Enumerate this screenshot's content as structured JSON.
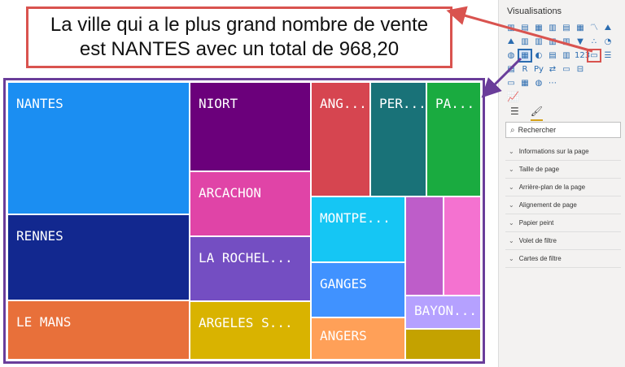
{
  "callout": {
    "line1": "La ville qui a le plus grand nombre de vente",
    "line2": "est NANTES avec un total de 968,20"
  },
  "treemap": {
    "tiles": [
      {
        "label": "NANTES",
        "color": "#1b8ef2"
      },
      {
        "label": "RENNES",
        "color": "#12288f"
      },
      {
        "label": "LE MANS",
        "color": "#e8703a"
      },
      {
        "label": "NIORT",
        "color": "#6b007b"
      },
      {
        "label": "ARCACHON",
        "color": "#e044a7"
      },
      {
        "label": "LA ROCHEL...",
        "color": "#744ec2"
      },
      {
        "label": "ARGELES S...",
        "color": "#d9b300"
      },
      {
        "label": "ANG...",
        "color": "#d64550"
      },
      {
        "label": "PER...",
        "color": "#197278"
      },
      {
        "label": "PA...",
        "color": "#1aab40"
      },
      {
        "label": "MONTPE...",
        "color": "#15c6f4"
      },
      {
        "label": "GANGES",
        "color": "#4092ff"
      },
      {
        "label": "ANGERS",
        "color": "#ffa058"
      },
      {
        "label": "",
        "color": "#be5dc9"
      },
      {
        "label": "",
        "color": "#f472d0"
      },
      {
        "label": "BAYON...",
        "color": "#b5a1ff"
      },
      {
        "label": "",
        "color": "#c4a200"
      }
    ]
  },
  "panel": {
    "title": "Visualisations",
    "search_placeholder": "Rechercher",
    "sections": [
      "Informations sur la page",
      "Taille de page",
      "Arrière-plan de la page",
      "Alignement de page",
      "Papier peint",
      "Volet de filtre",
      "Cartes de filtre"
    ],
    "viz_rows": [
      [
        "▥",
        "▤",
        "▦",
        "▥",
        "▤",
        "▦",
        "〽",
        "⛰"
      ],
      [
        "⛰",
        "▥",
        "▥",
        "▥",
        "▥",
        "▼",
        "∴",
        "◔"
      ],
      [
        "◍",
        "▦",
        "◐",
        "▤",
        "▥",
        "123",
        "▭",
        "☰"
      ],
      [
        "▤",
        "R",
        "Py",
        "⇄",
        "▭",
        "⊟",
        "",
        ""
      ],
      [
        "▭",
        "▦",
        "◍",
        "⋯",
        "",
        "",
        "",
        ""
      ]
    ],
    "tabs": [
      "fields-icon",
      "format-icon"
    ],
    "colors": {
      "accent": "#2b6cb0",
      "callout_border": "#d9534f",
      "frame_border": "#6a3d9a"
    }
  }
}
